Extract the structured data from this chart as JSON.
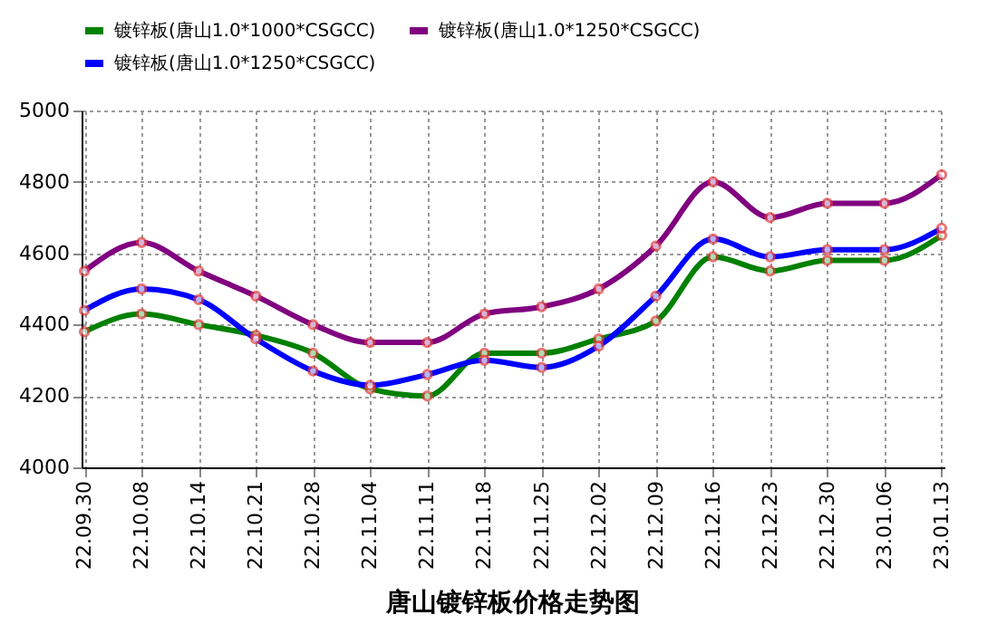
{
  "chart_data": {
    "type": "line",
    "title": "唐山镀锌板价格走势图",
    "categories": [
      "22.09.30",
      "22.10.08",
      "22.10.14",
      "22.10.21",
      "22.10.28",
      "22.11.04",
      "22.11.11",
      "22.11.18",
      "22.11.25",
      "22.12.02",
      "22.12.09",
      "22.12.16",
      "22.12.23",
      "22.12.30",
      "23.01.06",
      "23.01.13"
    ],
    "series": [
      {
        "name": "镀锌板(唐山1.0*1000*CSGCC)",
        "color": "#008000",
        "values": [
          4380,
          4430,
          4400,
          4370,
          4320,
          4220,
          4200,
          4320,
          4320,
          4360,
          4410,
          4590,
          4550,
          4580,
          4580,
          4650
        ]
      },
      {
        "name": "镀锌板(唐山1.0*1250*CSGCC)",
        "color": "#0000ff",
        "values": [
          4440,
          4500,
          4470,
          4360,
          4270,
          4230,
          4260,
          4300,
          4280,
          4340,
          4480,
          4640,
          4590,
          4610,
          4610,
          4670
        ]
      },
      {
        "name": "镀锌板(唐山1.0*1250*CSGCC)",
        "color": "#800080",
        "values": [
          4550,
          4630,
          4550,
          4480,
          4400,
          4350,
          4350,
          4430,
          4450,
          4500,
          4620,
          4800,
          4700,
          4740,
          4740,
          4820
        ]
      }
    ],
    "ylim": [
      4000,
      5000
    ],
    "yticks": [
      4000,
      4200,
      4400,
      4600,
      4800,
      5000
    ],
    "grid": true,
    "legend": "top",
    "marker": "circle",
    "line_style": "solid"
  }
}
